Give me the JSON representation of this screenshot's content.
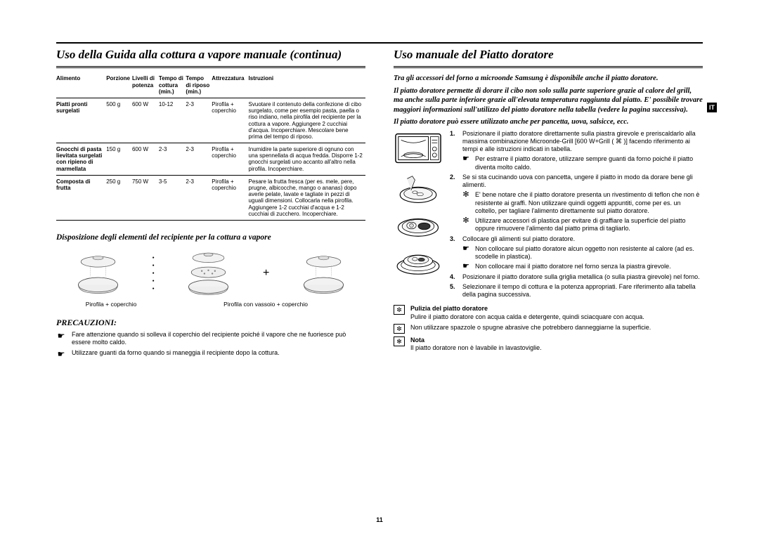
{
  "lang_tab": "IT",
  "page_number": "11",
  "left": {
    "title": "Uso della Guida alla cottura a vapore manuale (continua)",
    "table": {
      "headers": [
        "Alimento",
        "Porzione",
        "Livelli di potenza",
        "Tempo di cottura (min.)",
        "Tempo di riposo (min.)",
        "Attrezzatura",
        "Istruzioni"
      ],
      "rows": [
        {
          "food": "Piatti pronti surgelati",
          "portion": "500 g",
          "power": "600 W",
          "cook": "10-12",
          "rest": "2-3",
          "equip": "Pirofila + coperchio",
          "instr": "Svuotare il contenuto della confezione di cibo surgelato, come per esempio pasta, paella o riso indiano, nella pirofila del recipiente per la cottura a vapore. Aggiungere 2 cucchiai d'acqua. Incoperchiare. Mescolare bene prima del tempo di riposo."
        },
        {
          "food": "Gnocchi di pasta lievitata surgelati con ripieno di marmellata",
          "portion": "150 g",
          "power": "600 W",
          "cook": "2-3",
          "rest": "2-3",
          "equip": "Pirofila + coperchio",
          "instr": "Inumidire la parte superiore di ognuno con una spennellata di acqua fredda. Disporre 1-2 gnocchi surgelati uno accanto all'altro nella pirofila. Incoperchiare."
        },
        {
          "food": "Composta di frutta",
          "portion": "250 g",
          "power": "750 W",
          "cook": "3-5",
          "rest": "2-3",
          "equip": "Pirofila + coperchio",
          "instr": "Pesare la frutta fresca (per es. mele, pere, prugne, albicocche, mango o ananas) dopo averle pelate, lavate e tagliate in pezzi di uguali dimensioni. Collocarla nella pirofila. Aggiungere 1-2 cucchiai d'acqua e 1-2 cucchiai di zucchero. Incoperchiare."
        }
      ]
    },
    "disposition_title": "Disposizione degli elementi del recipiente per la cottura a vapore",
    "diag_label1": "Pirofila + coperchio",
    "diag_label2": "Pirofila con vassoio + coperchio",
    "plus": "+",
    "precautions_title": "PRECAUZIONI:",
    "precautions": [
      "Fare attenzione quando si solleva il coperchio del recipiente poiché il vapore che ne fuoriesce può essere molto caldo.",
      "Utilizzare guanti da forno quando si maneggia il recipiente dopo la cottura."
    ]
  },
  "right": {
    "title": "Uso manuale del Piatto doratore",
    "intro": [
      "Tra gli accessori del forno a microonde Samsung è disponibile anche il piatto doratore.",
      "Il piatto doratore permette di dorare il cibo non solo sulla parte superiore grazie al calore del grill, ma anche sulla parte inferiore grazie all'elevata temperatura raggiunta dal piatto. E' possibile trovare maggiori informazioni sull'utilizzo del piatto doratore nella tabella (vedere la pagina successiva).",
      "Il piatto doratore può essere utilizzato anche per pancetta, uova, salsicce, ecc."
    ],
    "steps": [
      {
        "n": "1.",
        "txt": "Posizionare il piatto doratore direttamente sulla piastra girevole e preriscaldarlo alla massima combinazione Microonde-Grill [600 W+Grill ( ⌘ )] facendo riferimento ai tempi e alle istruzioni indicati in tabella.",
        "subs": [
          {
            "sym": "☛",
            "txt": "Per estrarre il piatto doratore, utilizzare sempre guanti da forno poiché il piatto diventa molto caldo."
          }
        ]
      },
      {
        "n": "2.",
        "txt": "Se si sta cucinando uova con pancetta, ungere il piatto in modo da dorare bene gli alimenti.",
        "subs": [
          {
            "sym": "✻",
            "txt": "E' bene notare che il piatto doratore presenta un rivestimento di teflon che non è resistente ai graffi. Non utilizzare quindi oggetti appuntiti, come per es. un coltello, per tagliare l'alimento direttamente sul piatto doratore."
          },
          {
            "sym": "✻",
            "txt": "Utilizzare accessori di plastica per evitare di graffiare la superficie del piatto oppure rimuovere l'alimento dal piatto prima di tagliarlo."
          }
        ]
      },
      {
        "n": "3.",
        "txt": "Collocare gli alimenti sul piatto doratore.",
        "subs": [
          {
            "sym": "☛",
            "txt": "Non collocare sul piatto doratore alcun oggetto non resistente al calore (ad es. scodelle in plastica)."
          },
          {
            "sym": "☛",
            "txt": "Non collocare mai il piatto doratore nel forno senza la piastra girevole."
          }
        ]
      },
      {
        "n": "4.",
        "txt": "Posizionare il piatto doratore sulla griglia metallica (o sulla piastra girevole) nel forno.",
        "subs": []
      },
      {
        "n": "5.",
        "txt": "Selezionare il tempo di cottura e la potenza appropriati. Fare riferimento alla tabella della pagina successiva.",
        "subs": []
      }
    ],
    "notes": [
      {
        "sym": "✼",
        "head": "Pulizia del piatto doratore",
        "txt": "Pulire il piatto doratore con acqua calda e detergente, quindi sciacquare con acqua."
      },
      {
        "sym": "✼",
        "head": "",
        "txt": "Non utilizzare spazzole o spugne abrasive che potrebbero danneggiarne la superficie."
      },
      {
        "sym": "✻",
        "head": "Nota",
        "txt": "Il piatto doratore non è lavabile in lavastoviglie."
      }
    ]
  }
}
